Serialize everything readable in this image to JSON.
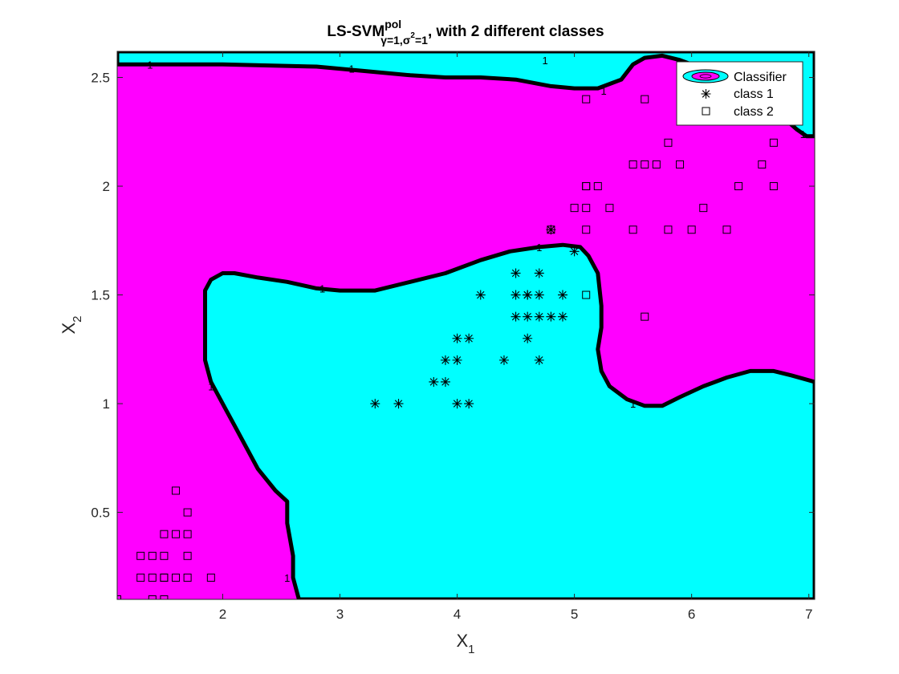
{
  "chart_data": {
    "type": "scatter",
    "title": {
      "main": "LS-SVM",
      "sup": "pol",
      "sub": "γ=1,σ",
      "sub_sup": "2",
      "sub_tail": "=1",
      "tail": ", with 2 different classes"
    },
    "xlabel": {
      "main": "X",
      "sub": "1"
    },
    "ylabel": {
      "main": "X",
      "sub": "2"
    },
    "xlim": [
      1.1,
      7.05
    ],
    "ylim": [
      0.1,
      2.62
    ],
    "xticks": [
      2,
      3,
      4,
      5,
      6,
      7
    ],
    "yticks": [
      0.5,
      1,
      1.5,
      2,
      2.5
    ],
    "xtick_labels": [
      "2",
      "3",
      "4",
      "5",
      "6",
      "7"
    ],
    "ytick_labels": [
      "0.5",
      "1",
      "1.5",
      "2",
      "2.5"
    ],
    "grid": false,
    "legend_position": "top-right",
    "legend": [
      "Classifier",
      "class 1",
      "class 2"
    ],
    "colors": {
      "region_class2": "#ff00ff",
      "region_class1": "#00ffff",
      "boundary": "#000000"
    },
    "contour_label": "1",
    "contour_label_positions": [
      [
        1.38,
        2.56
      ],
      [
        3.1,
        2.54
      ],
      [
        4.75,
        2.58
      ],
      [
        5.25,
        2.44
      ],
      [
        6.95,
        2.24
      ],
      [
        2.85,
        1.53
      ],
      [
        4.7,
        1.72
      ],
      [
        1.9,
        1.08
      ],
      [
        5.5,
        1.0
      ],
      [
        2.55,
        0.2
      ]
    ],
    "regions": {
      "top_cyan": [
        [
          1.1,
          2.62
        ],
        [
          1.1,
          2.56
        ],
        [
          2.0,
          2.56
        ],
        [
          2.8,
          2.55
        ],
        [
          3.2,
          2.53
        ],
        [
          3.6,
          2.51
        ],
        [
          3.9,
          2.5
        ],
        [
          4.2,
          2.5
        ],
        [
          4.5,
          2.49
        ],
        [
          4.8,
          2.46
        ],
        [
          5.0,
          2.45
        ],
        [
          5.2,
          2.45
        ],
        [
          5.4,
          2.49
        ],
        [
          5.5,
          2.56
        ],
        [
          5.6,
          2.59
        ],
        [
          5.75,
          2.6
        ],
        [
          5.9,
          2.58
        ],
        [
          6.1,
          2.54
        ],
        [
          6.3,
          2.48
        ],
        [
          6.55,
          2.42
        ],
        [
          6.75,
          2.33
        ],
        [
          6.9,
          2.26
        ],
        [
          6.98,
          2.23
        ],
        [
          7.05,
          2.23
        ],
        [
          7.05,
          2.62
        ]
      ],
      "main_cyan": [
        [
          2.65,
          0.1
        ],
        [
          2.6,
          0.2
        ],
        [
          2.6,
          0.3
        ],
        [
          2.55,
          0.45
        ],
        [
          2.55,
          0.55
        ],
        [
          2.45,
          0.6
        ],
        [
          2.3,
          0.7
        ],
        [
          2.2,
          0.8
        ],
        [
          2.1,
          0.9
        ],
        [
          2.0,
          1.0
        ],
        [
          1.95,
          1.05
        ],
        [
          1.9,
          1.1
        ],
        [
          1.85,
          1.2
        ],
        [
          1.85,
          1.3
        ],
        [
          1.85,
          1.42
        ],
        [
          1.85,
          1.52
        ],
        [
          1.9,
          1.57
        ],
        [
          2.0,
          1.6
        ],
        [
          2.1,
          1.6
        ],
        [
          2.3,
          1.58
        ],
        [
          2.55,
          1.56
        ],
        [
          2.8,
          1.53
        ],
        [
          3.0,
          1.52
        ],
        [
          3.3,
          1.52
        ],
        [
          3.6,
          1.56
        ],
        [
          3.9,
          1.6
        ],
        [
          4.2,
          1.66
        ],
        [
          4.45,
          1.7
        ],
        [
          4.7,
          1.72
        ],
        [
          4.9,
          1.73
        ],
        [
          5.05,
          1.72
        ],
        [
          5.12,
          1.68
        ],
        [
          5.2,
          1.6
        ],
        [
          5.23,
          1.45
        ],
        [
          5.23,
          1.35
        ],
        [
          5.2,
          1.25
        ],
        [
          5.23,
          1.15
        ],
        [
          5.3,
          1.08
        ],
        [
          5.45,
          1.02
        ],
        [
          5.6,
          0.99
        ],
        [
          5.75,
          0.99
        ],
        [
          5.9,
          1.03
        ],
        [
          6.1,
          1.08
        ],
        [
          6.3,
          1.12
        ],
        [
          6.5,
          1.15
        ],
        [
          6.7,
          1.15
        ],
        [
          6.85,
          1.13
        ],
        [
          7.05,
          1.1
        ],
        [
          7.05,
          0.1
        ]
      ],
      "mid_left_cyan": [
        [
          1.1,
          0.1
        ],
        [
          1.1,
          0.12
        ],
        [
          1.15,
          0.1
        ]
      ]
    },
    "series": [
      {
        "name": "class 1",
        "marker": "*",
        "x": [
          3.3,
          3.5,
          3.8,
          3.9,
          3.9,
          4.0,
          4.0,
          4.0,
          4.1,
          4.1,
          4.2,
          4.4,
          4.5,
          4.5,
          4.5,
          4.6,
          4.6,
          4.6,
          4.6,
          4.7,
          4.7,
          4.7,
          4.7,
          4.8,
          4.8,
          4.9,
          4.9,
          5.0
        ],
        "y": [
          1.0,
          1.0,
          1.1,
          1.1,
          1.2,
          1.2,
          1.3,
          1.0,
          1.3,
          1.0,
          1.5,
          1.2,
          1.6,
          1.5,
          1.4,
          1.5,
          1.4,
          1.3,
          1.5,
          1.6,
          1.5,
          1.4,
          1.2,
          1.4,
          1.8,
          1.5,
          1.4,
          1.7
        ]
      },
      {
        "name": "class 2",
        "marker": "square",
        "x": [
          1.1,
          1.3,
          1.3,
          1.4,
          1.4,
          1.4,
          1.5,
          1.5,
          1.5,
          1.5,
          1.5,
          1.6,
          1.6,
          1.6,
          1.7,
          1.7,
          1.7,
          1.7,
          1.9,
          4.8,
          5.0,
          5.1,
          5.1,
          5.1,
          5.1,
          5.1,
          5.1,
          5.2,
          5.3,
          5.5,
          5.5,
          5.6,
          5.6,
          5.6,
          5.7,
          5.8,
          5.8,
          5.9,
          6.0,
          6.1,
          6.3,
          6.4,
          6.6,
          6.7,
          6.7,
          6.1
        ],
        "y": [
          0.1,
          0.2,
          0.3,
          0.1,
          0.2,
          0.3,
          0.1,
          0.2,
          0.3,
          0.4,
          0.2,
          0.2,
          0.4,
          0.6,
          0.2,
          0.3,
          0.4,
          0.5,
          0.2,
          1.8,
          1.9,
          1.5,
          1.8,
          1.9,
          2.0,
          2.4,
          2.0,
          2.0,
          1.9,
          1.8,
          2.1,
          2.1,
          2.4,
          1.4,
          2.1,
          1.8,
          2.2,
          2.1,
          1.8,
          1.9,
          1.8,
          2.0,
          2.1,
          2.0,
          2.2,
          2.3
        ]
      }
    ]
  }
}
